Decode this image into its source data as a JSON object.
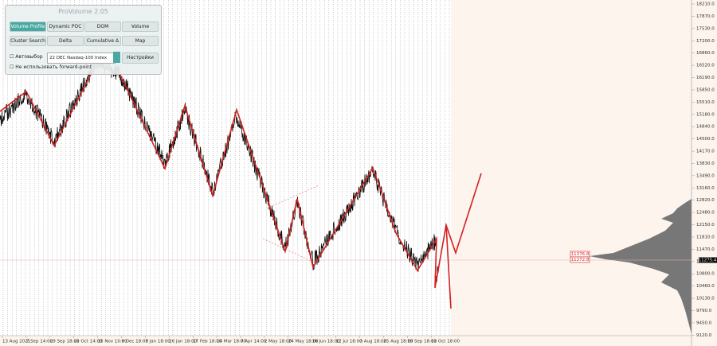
{
  "panel": {
    "title": "ProVolume 2.05",
    "buttons": [
      "Volume Profile",
      "Dynamic POC",
      "DOM",
      "Volume",
      "Cluster Search",
      "Delta",
      "Cumulative Δ",
      "Map"
    ],
    "auto_select": "Автовыбор",
    "instrument": "22 DEC Nasdaq-100 Index",
    "settings": "Настройки",
    "forward_point": "Не использовать forward-point"
  },
  "price_axis": [
    "18210.0",
    "17870.0",
    "17530.0",
    "17200.0",
    "16860.0",
    "16520.0",
    "16190.0",
    "15850.0",
    "15510.0",
    "15180.0",
    "14840.0",
    "14500.0",
    "14170.0",
    "13830.0",
    "13490.0",
    "13160.0",
    "12820.0",
    "12480.0",
    "12150.0",
    "11810.0",
    "11470.0",
    "11140.0",
    "10800.0",
    "10460.0",
    "10130.0",
    "9790.0",
    "9450.0",
    "9120.0"
  ],
  "time_axis": [
    "13 Aug 2021",
    "7 Sep 14:00",
    "29 Sep 18:00",
    "21 Oct 14:00",
    "15 Nov 10:00",
    "8 Dec 18:00",
    "3 Jan 18:00",
    "26 Jan 18:00",
    "17 Feb 18:00",
    "14 Mar 18:00",
    "7 Apr 14:00",
    "2 May 18:00",
    "24 May 18:00",
    "16 Jun 18:00",
    "12 Jul 18:00",
    "3 Aug 18:00",
    "25 Aug 18:00",
    "19 Sep 18:00",
    "11 Oct 18:00"
  ],
  "price_tags": {
    "current": "11275.4",
    "upper": "11376.8",
    "lower": "11272.8"
  }
}
